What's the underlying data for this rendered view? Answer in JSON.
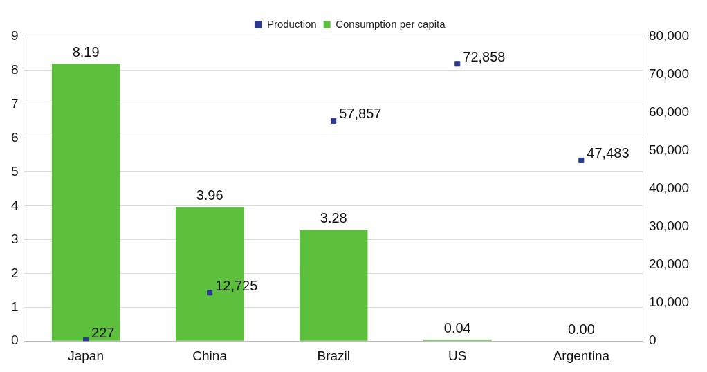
{
  "chart_data": {
    "type": "bar",
    "categories": [
      "Japan",
      "China",
      "Brazil",
      "US",
      "Argentina"
    ],
    "series": [
      {
        "name": "Consumption per capita",
        "color": "#5cc03c",
        "values": [
          8.19,
          3.96,
          3.28,
          0.04,
          0.0
        ],
        "value_labels": [
          "8.19",
          "3.96",
          "3.28",
          "0.04",
          "0.00"
        ]
      },
      {
        "name": "Production",
        "type": "scatter",
        "axis": "y2",
        "color": "#2b3a8c",
        "x": [
          "Japan",
          "China",
          "Brazil",
          "US",
          "Argentina"
        ],
        "values": [
          227,
          12725,
          57857,
          72858,
          47483
        ],
        "value_labels": [
          "227",
          "12,725",
          "57,857",
          "72,858",
          "47,483"
        ]
      }
    ],
    "ylim": [
      0,
      9
    ],
    "yticks": [
      0,
      1,
      2,
      3,
      4,
      5,
      6,
      7,
      8,
      9
    ],
    "y2lim": [
      0,
      80000
    ],
    "y2ticks": [
      {
        "value": 0,
        "label": "0"
      },
      {
        "value": 10000,
        "label": "10,000"
      },
      {
        "value": 20000,
        "label": "20,000"
      },
      {
        "value": 30000,
        "label": "30,000"
      },
      {
        "value": 40000,
        "label": "40,000"
      },
      {
        "value": 50000,
        "label": "50,000"
      },
      {
        "value": 60000,
        "label": "60,000"
      },
      {
        "value": 70000,
        "label": "70,000"
      },
      {
        "value": 80000,
        "label": "80,000"
      }
    ],
    "grid": "y",
    "legend": "top",
    "marker": "square"
  }
}
